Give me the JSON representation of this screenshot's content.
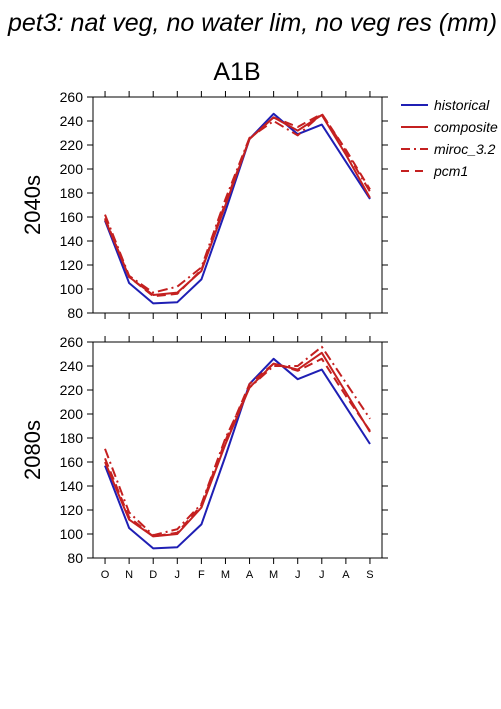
{
  "title": "pet3: nat veg, no water lim, no veg res (mm)",
  "scenario": "A1B",
  "colors": {
    "historical": "#1f1fb4",
    "future": "#c42020"
  },
  "chart_data": [
    {
      "type": "line",
      "panel_label": "2040s",
      "categories": [
        "O",
        "N",
        "D",
        "J",
        "F",
        "M",
        "A",
        "M",
        "J",
        "J",
        "A",
        "S"
      ],
      "ylim": [
        80,
        260
      ],
      "yticks": [
        80,
        100,
        120,
        140,
        160,
        180,
        200,
        220,
        240,
        260
      ],
      "grid": false,
      "legend_position": "right",
      "series": [
        {
          "name": "historical",
          "style": "solid",
          "values": [
            157,
            105,
            88,
            89,
            108,
            165,
            225,
            246,
            229,
            237,
            206,
            175
          ]
        },
        {
          "name": "composite",
          "style": "solid",
          "values": [
            158,
            110,
            95,
            97,
            115,
            170,
            225,
            243,
            232,
            245,
            212,
            176
          ]
        },
        {
          "name": "miroc_3.2",
          "style": "dashdot",
          "values": [
            162,
            111,
            97,
            102,
            118,
            175,
            226,
            240,
            228,
            246,
            215,
            181
          ]
        },
        {
          "name": "pcm1",
          "style": "dashed",
          "values": [
            159,
            110,
            94,
            96,
            116,
            172,
            225,
            243,
            235,
            246,
            216,
            183
          ]
        }
      ]
    },
    {
      "type": "line",
      "panel_label": "2080s",
      "categories": [
        "O",
        "N",
        "D",
        "J",
        "F",
        "M",
        "A",
        "M",
        "J",
        "J",
        "A",
        "S"
      ],
      "ylim": [
        80,
        260
      ],
      "yticks": [
        80,
        100,
        120,
        140,
        160,
        180,
        200,
        220,
        240,
        260
      ],
      "grid": false,
      "legend_position": "none",
      "series": [
        {
          "name": "historical",
          "style": "solid",
          "values": [
            157,
            105,
            88,
            89,
            108,
            165,
            225,
            246,
            229,
            237,
            206,
            175
          ]
        },
        {
          "name": "composite",
          "style": "solid",
          "values": [
            160,
            112,
            98,
            100,
            122,
            175,
            222,
            242,
            237,
            251,
            218,
            185
          ]
        },
        {
          "name": "miroc_3.2",
          "style": "dashdot",
          "values": [
            171,
            118,
            99,
            104,
            125,
            180,
            222,
            240,
            240,
            256,
            226,
            196
          ]
        },
        {
          "name": "pcm1",
          "style": "dashed",
          "values": [
            163,
            114,
            98,
            101,
            124,
            178,
            225,
            242,
            236,
            246,
            215,
            186
          ]
        }
      ]
    }
  ]
}
